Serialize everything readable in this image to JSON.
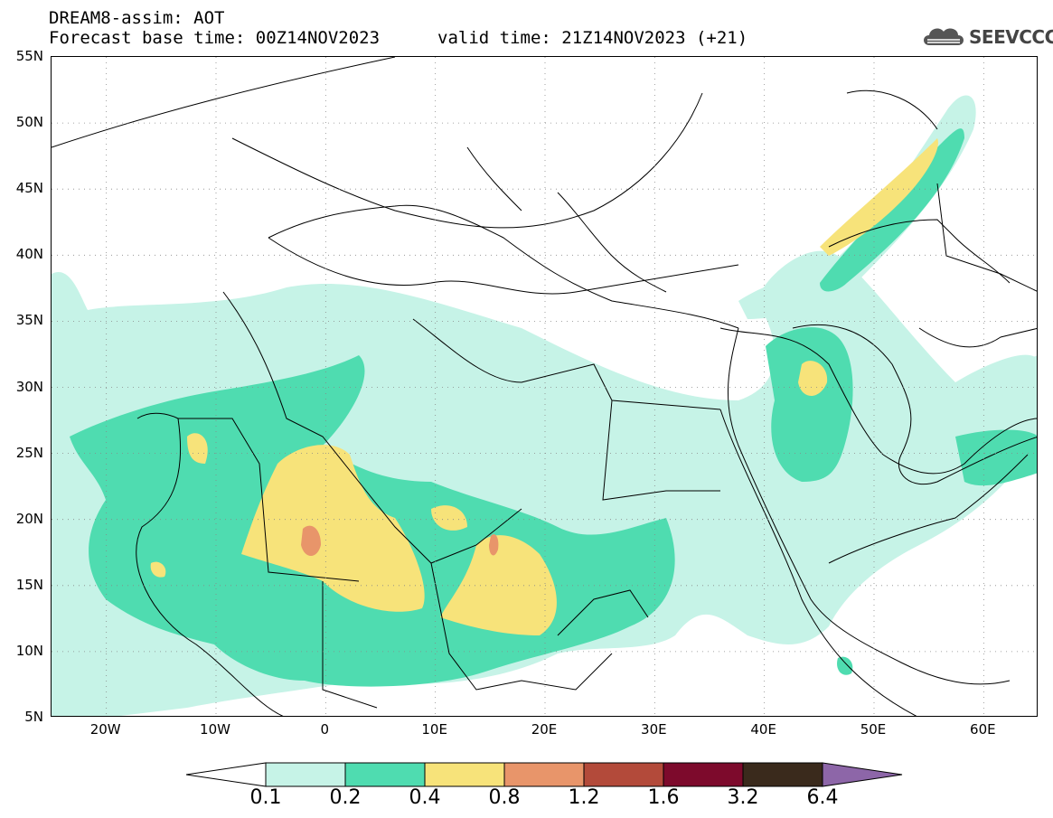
{
  "title": {
    "line1": "DREAM8-assim: AOT",
    "base": "Forecast base time: 00Z14NOV2023",
    "valid": "valid time: 21Z14NOV2023 (+21)"
  },
  "logo": {
    "text": "SEEVCCC",
    "icon": "cloud-logo-icon"
  },
  "map": {
    "lat_labels": [
      "55N",
      "50N",
      "45N",
      "40N",
      "35N",
      "30N",
      "25N",
      "20N",
      "15N",
      "10N",
      "5N"
    ],
    "lon_labels": [
      "20W",
      "10W",
      "0",
      "10E",
      "20E",
      "30E",
      "40E",
      "50E",
      "60E"
    ],
    "lon_range": [
      -25,
      65
    ],
    "lat_range": [
      5,
      55
    ]
  },
  "colorbar": {
    "labels": [
      "0.1",
      "0.2",
      "0.4",
      "0.8",
      "1.2",
      "1.6",
      "3.2",
      "6.4"
    ],
    "colors": [
      "#ffffff",
      "#c6f3e7",
      "#4fdcb0",
      "#f7e37a",
      "#e8956a",
      "#b34a3a",
      "#7d0a2c",
      "#3a2a1c",
      "#8d66a8"
    ]
  }
}
